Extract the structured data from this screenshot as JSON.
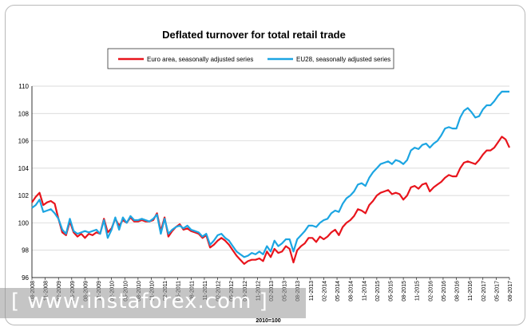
{
  "chart_data": {
    "type": "line",
    "title": "Deflated turnover for total retail trade",
    "xlabel": "",
    "ylabel": "",
    "ylim": [
      96,
      110
    ],
    "yticks": [
      96,
      98,
      100,
      102,
      104,
      106,
      108,
      110
    ],
    "grid": true,
    "legend": "top",
    "footnote": "2010=100",
    "x_tick_labels": [
      "08-2008",
      "11-2008",
      "02-2009",
      "05-2009",
      "08-2009",
      "11-2009",
      "02-2010",
      "05-2010",
      "08-2010",
      "11-2010",
      "02-2011",
      "05-2011",
      "08-2011",
      "11-2011",
      "02-2012",
      "05-2012",
      "08-2012",
      "11-2012",
      "02-2013",
      "05-2013",
      "08-2013",
      "11-2013",
      "02-2014",
      "05-2014",
      "08-2014",
      "11-2014",
      "02-2015",
      "05-2015",
      "08-2015",
      "11-2015",
      "02-2016",
      "05-2016",
      "08-2016",
      "11-2016",
      "02-2017",
      "05-2017",
      "08-2017"
    ],
    "series": [
      {
        "name": "Euro area, seasonally adjusted series",
        "color": "#e8141c",
        "values": [
          101.5,
          101.9,
          102.2,
          101.3,
          101.5,
          101.6,
          101.4,
          100.3,
          99.3,
          99.1,
          100.1,
          99.3,
          99.0,
          99.2,
          98.9,
          99.2,
          99.1,
          99.3,
          99.2,
          100.3,
          99.3,
          99.6,
          100.3,
          99.8,
          100.2,
          100.0,
          100.4,
          100.1,
          100.1,
          100.2,
          100.1,
          100.1,
          100.2,
          100.7,
          99.4,
          100.4,
          99.0,
          99.4,
          99.7,
          99.9,
          99.5,
          99.6,
          99.4,
          99.3,
          99.2,
          98.9,
          99.1,
          98.2,
          98.4,
          98.7,
          98.9,
          98.7,
          98.4,
          98.0,
          97.6,
          97.3,
          97.0,
          97.2,
          97.3,
          97.3,
          97.4,
          97.2,
          97.9,
          97.5,
          98.1,
          97.8,
          97.9,
          98.3,
          98.1,
          97.1,
          98.0,
          98.3,
          98.5,
          98.9,
          98.9,
          98.6,
          99.0,
          98.8,
          99.0,
          99.3,
          99.5,
          99.1,
          99.7,
          100.0,
          100.2,
          100.5,
          101.0,
          100.9,
          100.7,
          101.3,
          101.6,
          102.0,
          102.2,
          102.3,
          102.4,
          102.1,
          102.2,
          102.1,
          101.7,
          102.0,
          102.6,
          102.7,
          102.5,
          102.8,
          102.9,
          102.3,
          102.6,
          102.8,
          103.0,
          103.3,
          103.5,
          103.4,
          103.4,
          104.0,
          104.4,
          104.5,
          104.4,
          104.3,
          104.6,
          105.0,
          105.3,
          105.3,
          105.5,
          105.9,
          106.3,
          106.1,
          105.5
        ]
      },
      {
        "name": "EU28, seasonally adjusted series",
        "color": "#1ca5e2",
        "values": [
          101.1,
          101.3,
          101.7,
          100.8,
          100.9,
          101.0,
          100.7,
          100.3,
          99.5,
          99.2,
          100.3,
          99.4,
          99.2,
          99.3,
          99.4,
          99.3,
          99.4,
          99.5,
          99.2,
          100.2,
          98.9,
          99.5,
          100.4,
          99.5,
          100.4,
          100.0,
          100.5,
          100.2,
          100.2,
          100.3,
          100.2,
          100.1,
          100.3,
          100.6,
          99.2,
          100.3,
          99.2,
          99.5,
          99.7,
          99.8,
          99.6,
          99.8,
          99.5,
          99.4,
          99.3,
          99.0,
          99.2,
          98.4,
          98.7,
          99.1,
          99.2,
          98.9,
          98.7,
          98.3,
          97.9,
          97.7,
          97.5,
          97.6,
          97.8,
          97.7,
          97.9,
          97.7,
          98.3,
          97.9,
          98.7,
          98.3,
          98.5,
          98.8,
          98.8,
          97.9,
          98.8,
          99.1,
          99.4,
          99.8,
          99.8,
          99.7,
          100.0,
          100.2,
          100.3,
          100.7,
          100.9,
          100.8,
          101.4,
          101.8,
          102.0,
          102.3,
          102.8,
          102.9,
          102.7,
          103.3,
          103.7,
          104.0,
          104.3,
          104.4,
          104.5,
          104.3,
          104.6,
          104.5,
          104.3,
          104.6,
          105.3,
          105.5,
          105.4,
          105.7,
          105.8,
          105.5,
          105.8,
          106.0,
          106.4,
          106.9,
          107.0,
          106.9,
          106.9,
          107.7,
          108.2,
          108.4,
          108.1,
          107.7,
          107.8,
          108.3,
          108.6,
          108.6,
          108.9,
          109.3,
          109.6,
          109.6,
          109.6
        ]
      }
    ]
  },
  "watermark": "[ www.instaforex.com ]"
}
